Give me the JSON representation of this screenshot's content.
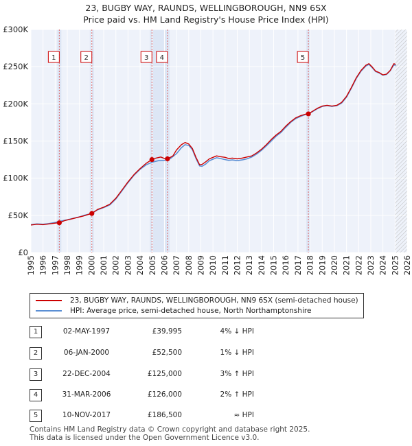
{
  "chart_data": {
    "type": "line",
    "title": "23, BUGBY WAY, RAUNDS, WELLINGBOROUGH, NN9 6SX",
    "subtitle": "Price paid vs. HM Land Registry's House Price Index (HPI)",
    "xlabel": "",
    "ylabel": "",
    "xlim": [
      1995,
      2026
    ],
    "ylim": [
      0,
      300000
    ],
    "yticks": [
      0,
      50000,
      100000,
      150000,
      200000,
      250000,
      300000
    ],
    "ytick_labels": [
      "£0",
      "£50K",
      "£100K",
      "£150K",
      "£200K",
      "£250K",
      "£300K"
    ],
    "xticks": [
      1995,
      1996,
      1997,
      1998,
      1999,
      2000,
      2001,
      2002,
      2003,
      2004,
      2005,
      2006,
      2007,
      2008,
      2009,
      2010,
      2011,
      2012,
      2013,
      2014,
      2015,
      2016,
      2017,
      2018,
      2019,
      2020,
      2021,
      2022,
      2023,
      2024,
      2025,
      2026
    ],
    "grid": true,
    "future_hatch_from": 2025.0,
    "series": [
      {
        "name": "23, BUGBY WAY, RAUNDS, WELLINGBOROUGH, NN9 6SX (semi-detached house)",
        "color": "#cc0000",
        "x": [
          1995.0,
          1995.5,
          1996.0,
          1996.5,
          1997.0,
          1997.34,
          1997.8,
          1998.3,
          1998.8,
          1999.3,
          1999.8,
          2000.02,
          2000.5,
          2001.0,
          2001.5,
          2002.0,
          2002.5,
          2003.0,
          2003.5,
          2004.0,
          2004.5,
          2004.97,
          2005.3,
          2005.7,
          2006.0,
          2006.25,
          2006.7,
          2007.0,
          2007.4,
          2007.7,
          2008.0,
          2008.3,
          2008.6,
          2008.9,
          2009.1,
          2009.4,
          2009.7,
          2010.0,
          2010.3,
          2010.6,
          2011.0,
          2011.3,
          2011.6,
          2012.0,
          2012.4,
          2012.8,
          2013.2,
          2013.6,
          2014.0,
          2014.4,
          2014.8,
          2015.2,
          2015.6,
          2016.0,
          2016.4,
          2016.8,
          2017.2,
          2017.6,
          2017.86,
          2018.2,
          2018.6,
          2019.0,
          2019.4,
          2019.8,
          2020.2,
          2020.6,
          2021.0,
          2021.4,
          2021.8,
          2022.2,
          2022.6,
          2022.85,
          2023.1,
          2023.4,
          2023.7,
          2024.0,
          2024.3,
          2024.6,
          2024.9,
          2025.05
        ],
        "values": [
          37000,
          38000,
          37500,
          38500,
          39500,
          39995,
          43000,
          45000,
          47000,
          49000,
          51500,
          52500,
          58000,
          61000,
          65000,
          73000,
          84000,
          95000,
          105000,
          113000,
          120000,
          125000,
          127000,
          128500,
          126500,
          126000,
          130000,
          138000,
          145000,
          148000,
          146000,
          140000,
          128000,
          118000,
          118500,
          122000,
          126000,
          128000,
          130000,
          129000,
          128000,
          126500,
          127000,
          126000,
          127000,
          128500,
          130000,
          134000,
          139000,
          145000,
          152000,
          158000,
          163000,
          170000,
          176000,
          181000,
          184000,
          186000,
          186500,
          190000,
          194000,
          197000,
          198000,
          197000,
          198000,
          202000,
          210000,
          222000,
          235000,
          245000,
          252000,
          254000,
          250000,
          244000,
          242000,
          239000,
          240000,
          245000,
          254000,
          253000
        ]
      },
      {
        "name": "HPI: Average price, semi-detached house, North Northamptonshire",
        "color": "#5b8fd4",
        "x": [
          1995.0,
          1995.5,
          1996.0,
          1996.5,
          1997.0,
          1997.5,
          1998.0,
          1998.5,
          1999.0,
          1999.5,
          2000.0,
          2000.5,
          2001.0,
          2001.5,
          2002.0,
          2002.5,
          2003.0,
          2003.5,
          2004.0,
          2004.5,
          2005.0,
          2005.5,
          2006.0,
          2006.5,
          2007.0,
          2007.4,
          2007.7,
          2008.0,
          2008.3,
          2008.6,
          2008.9,
          2009.1,
          2009.4,
          2009.7,
          2010.0,
          2010.3,
          2010.6,
          2011.0,
          2011.3,
          2011.6,
          2012.0,
          2012.4,
          2012.8,
          2013.2,
          2013.6,
          2014.0,
          2014.4,
          2014.8,
          2015.2,
          2015.6,
          2016.0,
          2016.4,
          2016.8,
          2017.2,
          2017.6,
          2017.86,
          2018.2,
          2018.6,
          2019.0,
          2019.4,
          2019.8,
          2020.2,
          2020.6,
          2021.0,
          2021.4,
          2021.8,
          2022.2,
          2022.6,
          2022.85,
          2023.1,
          2023.4,
          2023.7,
          2024.0,
          2024.3,
          2024.6,
          2024.9,
          2025.05
        ],
        "values": [
          37500,
          38500,
          38000,
          39000,
          40500,
          42500,
          44000,
          46000,
          48000,
          50500,
          52500,
          57500,
          60500,
          64000,
          72000,
          83000,
          94000,
          104000,
          112000,
          118000,
          121500,
          123500,
          124000,
          126500,
          133000,
          141000,
          145000,
          144000,
          138500,
          126500,
          116500,
          116000,
          119000,
          123500,
          125500,
          127500,
          126500,
          125000,
          124000,
          124500,
          123500,
          124500,
          126000,
          128500,
          132500,
          137500,
          143500,
          150000,
          156500,
          161500,
          168500,
          175000,
          180000,
          183000,
          185500,
          186500,
          189500,
          193500,
          196500,
          197500,
          196500,
          197500,
          201000,
          209000,
          221000,
          234000,
          244000,
          251000,
          253000,
          249000,
          243500,
          241500,
          238500,
          239500,
          244500,
          252500,
          251500
        ]
      }
    ],
    "sales": [
      {
        "label": "1",
        "x": 1997.34,
        "value": 39995,
        "band_end": 1997.34
      },
      {
        "label": "2",
        "x": 2000.02,
        "value": 52500,
        "band_end": 2000.02
      },
      {
        "label": "3",
        "x": 2004.97,
        "value": 125000,
        "band_end": 2006.25
      },
      {
        "label": "4",
        "x": 2006.25,
        "value": 126000,
        "band_end": 2006.25
      },
      {
        "label": "5",
        "x": 2017.86,
        "value": 186500,
        "band_end": 2017.86
      }
    ]
  },
  "header": {
    "title": "23, BUGBY WAY, RAUNDS, WELLINGBOROUGH, NN9 6SX",
    "subtitle": "Price paid vs. HM Land Registry's House Price Index (HPI)"
  },
  "legend": {
    "price_paid": "23, BUGBY WAY, RAUNDS, WELLINGBOROUGH, NN9 6SX (semi-detached house)",
    "hpi": "HPI: Average price, semi-detached house, North Northamptonshire",
    "price_color": "#cc0000",
    "hpi_color": "#5b8fd4"
  },
  "transactions": [
    {
      "num": "1",
      "date": "02-MAY-1997",
      "price": "£39,995",
      "hpi": "4% ↓ HPI"
    },
    {
      "num": "2",
      "date": "06-JAN-2000",
      "price": "£52,500",
      "hpi": "1% ↓ HPI"
    },
    {
      "num": "3",
      "date": "22-DEC-2004",
      "price": "£125,000",
      "hpi": "3% ↑ HPI"
    },
    {
      "num": "4",
      "date": "31-MAR-2006",
      "price": "£126,000",
      "hpi": "2% ↑ HPI"
    },
    {
      "num": "5",
      "date": "10-NOV-2017",
      "price": "£186,500",
      "hpi": "≈ HPI"
    }
  ],
  "footer": {
    "line1": "Contains HM Land Registry data © Crown copyright and database right 2025.",
    "line2": "This data is licensed under the Open Government Licence v3.0."
  }
}
